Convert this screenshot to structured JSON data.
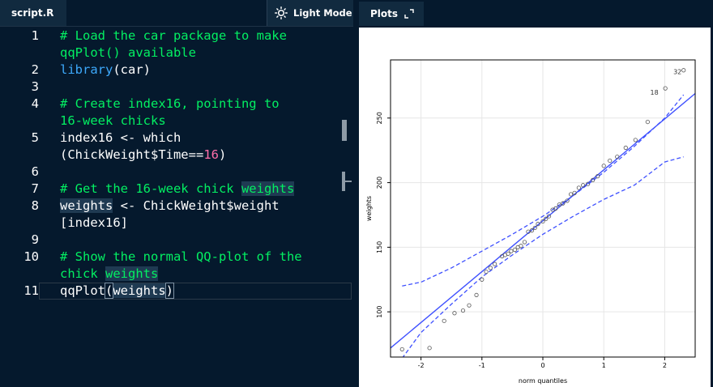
{
  "editor": {
    "tab_label": "script.R",
    "theme_button_label": "Light Mode",
    "theme_icon": "sun-icon",
    "lines": [
      {
        "n": "1",
        "segs": [
          {
            "t": "# Load the car package to make",
            "c": "cmt"
          }
        ]
      },
      {
        "n": "",
        "segs": [
          {
            "t": "qqPlot() available",
            "c": "cmt"
          }
        ]
      },
      {
        "n": "2",
        "segs": [
          {
            "t": "library",
            "c": "fn"
          },
          {
            "t": "(car)",
            "c": ""
          }
        ]
      },
      {
        "n": "3",
        "segs": []
      },
      {
        "n": "4",
        "segs": [
          {
            "t": "# Create index16, pointing to",
            "c": "cmt"
          }
        ]
      },
      {
        "n": "",
        "segs": [
          {
            "t": "16-week chicks",
            "c": "cmt"
          }
        ]
      },
      {
        "n": "5",
        "segs": [
          {
            "t": "index16 <- which",
            "c": ""
          }
        ]
      },
      {
        "n": "",
        "segs": [
          {
            "t": "(ChickWeight$Time==",
            "c": ""
          },
          {
            "t": "16",
            "c": "num"
          },
          {
            "t": ")",
            "c": ""
          }
        ]
      },
      {
        "n": "6",
        "segs": []
      },
      {
        "n": "7",
        "segs": [
          {
            "t": "# Get the 16-week chick ",
            "c": "cmt"
          },
          {
            "t": "weights",
            "c": "cmt hl"
          }
        ]
      },
      {
        "n": "8",
        "segs": [
          {
            "t": "weights",
            "c": "hl"
          },
          {
            "t": " <- ChickWeight$weight",
            "c": ""
          }
        ]
      },
      {
        "n": "",
        "segs": [
          {
            "t": "[index16]",
            "c": ""
          }
        ]
      },
      {
        "n": "9",
        "segs": []
      },
      {
        "n": "10",
        "segs": [
          {
            "t": "# Show the normal QQ-plot of the",
            "c": "cmt"
          }
        ]
      },
      {
        "n": "",
        "segs": [
          {
            "t": "chick ",
            "c": "cmt"
          },
          {
            "t": "weights",
            "c": "cmt hl"
          }
        ]
      },
      {
        "n": "11",
        "segs": [
          {
            "t": "qqPlot",
            "c": ""
          },
          {
            "t": "(",
            "c": "bracket"
          },
          {
            "t": "weights",
            "c": "hl"
          },
          {
            "t": ")",
            "c": "bracket"
          }
        ]
      }
    ]
  },
  "plots": {
    "tab_label": "Plots",
    "expand_icon": "expand-icon"
  },
  "chart_data": {
    "type": "scatter",
    "title": "",
    "xlabel": "norm quantiles",
    "ylabel": "weights",
    "xlim": [
      -2.5,
      2.5
    ],
    "ylim": [
      65,
      295
    ],
    "xticks": [
      -2,
      -1,
      0,
      1,
      2
    ],
    "yticks": [
      100,
      150,
      200,
      250
    ],
    "xtick_labels": [
      "-2",
      "-1",
      "0",
      "1",
      "2"
    ],
    "ytick_labels": [
      "100",
      "150",
      "200",
      "250"
    ],
    "grid": true,
    "points_x": [
      -2.31,
      -1.86,
      -1.62,
      -1.45,
      -1.31,
      -1.21,
      -1.09,
      -1.0,
      -0.93,
      -0.86,
      -0.79,
      -0.67,
      -0.62,
      -0.57,
      -0.52,
      -0.46,
      -0.41,
      -0.36,
      -0.3,
      -0.24,
      -0.18,
      -0.13,
      -0.08,
      0.0,
      0.05,
      0.1,
      0.16,
      0.21,
      0.27,
      0.33,
      0.4,
      0.46,
      0.52,
      0.59,
      0.66,
      0.74,
      0.82,
      0.9,
      1.0,
      1.1,
      1.22,
      1.36,
      1.52,
      1.72,
      2.01,
      2.31
    ],
    "points_y": [
      71,
      72,
      93,
      99,
      101,
      105,
      113,
      125,
      131,
      134,
      137,
      143,
      144,
      145,
      147,
      148,
      150,
      151,
      154,
      162,
      163,
      165,
      168,
      170,
      172,
      174,
      179,
      180,
      183,
      184,
      186,
      191,
      192,
      196,
      198,
      199,
      202,
      205,
      213,
      217,
      220,
      227,
      233,
      247,
      273,
      287
    ],
    "fit_line": {
      "x": [
        -2.5,
        2.5
      ],
      "y": [
        72.0,
        269.0
      ]
    },
    "upper_band": {
      "x": [
        -2.31,
        -2.0,
        -1.5,
        -1.0,
        -0.5,
        0.0,
        0.5,
        1.0,
        1.5,
        2.0,
        2.31
      ],
      "y": [
        120,
        123,
        134,
        147,
        160,
        174,
        190,
        208,
        228,
        250,
        268
      ]
    },
    "lower_band": {
      "x": [
        -2.31,
        -2.0,
        -1.5,
        -1.0,
        -0.5,
        0.0,
        0.5,
        1.0,
        1.5,
        2.0,
        2.31
      ],
      "y": [
        64,
        84,
        106,
        127,
        144,
        160,
        174,
        187,
        198,
        216,
        220
      ]
    },
    "annotations": [
      {
        "text": "18",
        "x": 1.83,
        "y": 270
      },
      {
        "text": "32",
        "x": 2.21,
        "y": 286
      }
    ]
  }
}
